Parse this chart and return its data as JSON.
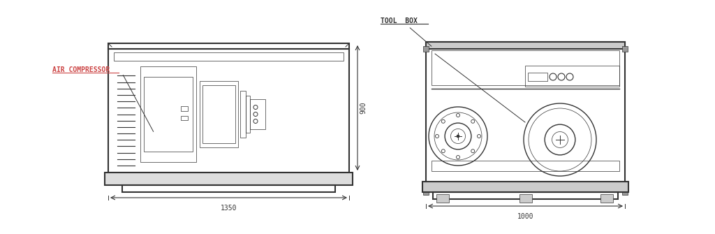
{
  "bg_color": "#ffffff",
  "line_color": "#333333",
  "lw": 1.0,
  "lw_thin": 0.5,
  "lw_thick": 1.5,
  "label_air_compressor": "AIR COMPRESSOR",
  "label_tool_box": "TOOL  BOX",
  "dim_1350": "1350",
  "dim_1000": "1000",
  "dim_900": "900",
  "font_size_label": 7,
  "font_size_dim": 7,
  "label_color_ac": "#cc4444",
  "label_color_tb": "#333333"
}
